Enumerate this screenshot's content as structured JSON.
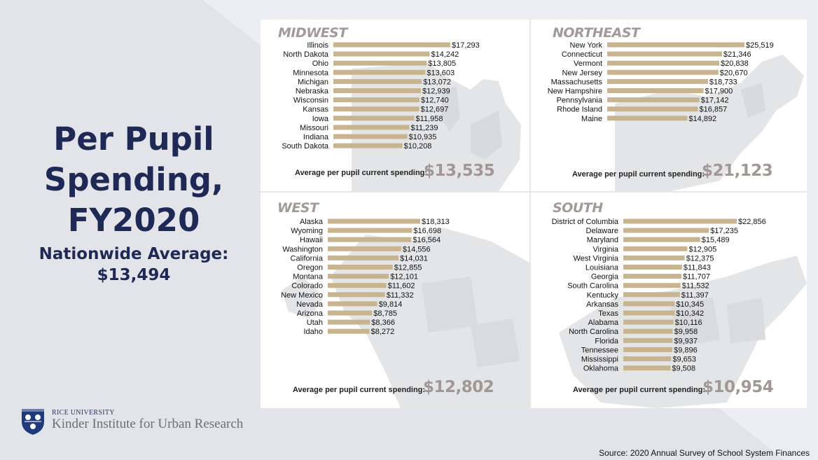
{
  "title_lines": [
    "Per Pupil",
    "Spending,",
    "FY2020"
  ],
  "nationwide_label": "Nationwide Average:",
  "nationwide_value": "$13,494",
  "institution": {
    "university": "RICE UNIVERSITY",
    "name": "Kinder Institute for Urban Research"
  },
  "source": "Source: 2020 Annual Survey of School System Finances",
  "colors": {
    "bar": "#c8b58f",
    "title_navy": "#1f2955",
    "region_title": "#a29a98",
    "average_value": "#a19896",
    "map_gray": "#e4e5e7"
  },
  "chart_data": [
    {
      "type": "bar",
      "orientation": "horizontal",
      "title": "MIDWEST",
      "categories": [
        "Illinois",
        "North Dakota",
        "Ohio",
        "Minnesota",
        "Michigan",
        "Nebraska",
        "Wisconsin",
        "Kansas",
        "Iowa",
        "Missouri",
        "Indiana",
        "South Dakota"
      ],
      "values": [
        17293,
        14242,
        13805,
        13603,
        13072,
        12939,
        12740,
        12697,
        11958,
        11239,
        10935,
        10208
      ],
      "labels": [
        "$17,293",
        "$14,242",
        "$13,805",
        "$13,603",
        "$13,072",
        "$12,939",
        "$12,740",
        "$12,697",
        "$11,958",
        "$11,239",
        "$10,935",
        "$10,208"
      ],
      "average_label": "Average per pupil current spending:",
      "average_value": "$13,535"
    },
    {
      "type": "bar",
      "orientation": "horizontal",
      "title": "NORTHEAST",
      "categories": [
        "New York",
        "Connecticut",
        "Vermont",
        "New Jersey",
        "Massachusetts",
        "New Hampshire",
        "Pennsylvania",
        "Rhode Island",
        "Maine"
      ],
      "values": [
        25519,
        21346,
        20838,
        20670,
        18733,
        17900,
        17142,
        16857,
        14892
      ],
      "labels": [
        "$25,519",
        "$21,346",
        "$20,838",
        "$20,670",
        "$18,733",
        "$17,900",
        "$17,142",
        "$16,857",
        "$14,892"
      ],
      "average_label": "Average per pupil current spending:",
      "average_value": "$21,123"
    },
    {
      "type": "bar",
      "orientation": "horizontal",
      "title": "WEST",
      "categories": [
        "Alaska",
        "Wyoming",
        "Hawaii",
        "Washington",
        "California",
        "Oregon",
        "Montana",
        "Colorado",
        "New Mexico",
        "Nevada",
        "Arizona",
        "Utah",
        "Idaho"
      ],
      "values": [
        18313,
        16698,
        16564,
        14556,
        14031,
        12855,
        12101,
        11602,
        11332,
        9814,
        8785,
        8366,
        8272
      ],
      "labels": [
        "$18,313",
        "$16,698",
        "$16,564",
        "$14,556",
        "$14,031",
        "$12,855",
        "$12,101",
        "$11,602",
        "$11,332",
        "$9,814",
        "$8,785",
        "$8,366",
        "$8,272"
      ],
      "average_label": "Average per pupil current spending:",
      "average_value": "$12,802"
    },
    {
      "type": "bar",
      "orientation": "horizontal",
      "title": "SOUTH",
      "categories": [
        "District of Columbia",
        "Delaware",
        "Maryland",
        "Virginia",
        "West Virginia",
        "Louisiana",
        "Georgia",
        "South Carolina",
        "Kentucky",
        "Arkansas",
        "Texas",
        "Alabama",
        "North Carolina",
        "Florida",
        "Tennessee",
        "Mississippi",
        "Oklahoma"
      ],
      "values": [
        22856,
        17235,
        15489,
        12905,
        12375,
        11843,
        11707,
        11532,
        11397,
        10345,
        10342,
        10116,
        9958,
        9937,
        9896,
        9653,
        9508
      ],
      "labels": [
        "$22,856",
        "$17,235",
        "$15,489",
        "$12,905",
        "$12,375",
        "$11,843",
        "$11,707",
        "$11,532",
        "$11,397",
        "$10,345",
        "$10,342",
        "$10,116",
        "$9,958",
        "$9,937",
        "$9,896",
        "$9,653",
        "$9,508"
      ],
      "average_label": "Average per pupil current spending:",
      "average_value": "$10,954"
    }
  ]
}
